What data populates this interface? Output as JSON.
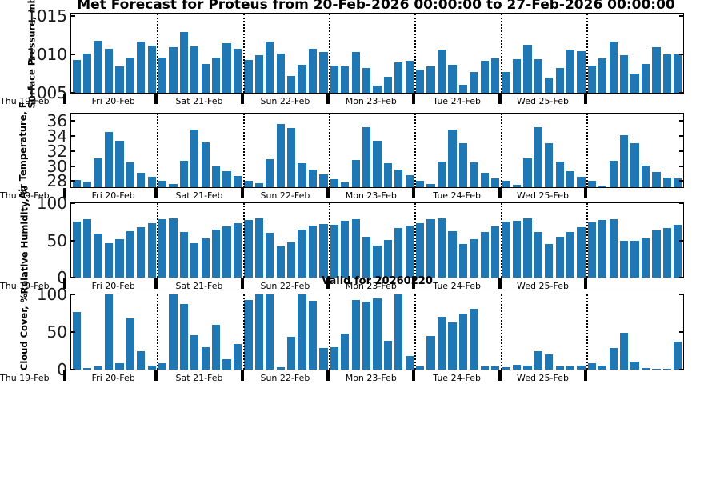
{
  "title": "Met Forecast for Proteus from 20-Feb-2026 00:00:00 to 27-Feb-2026 00:00:00",
  "annotation": "Valid for 20260220",
  "colors": {
    "bar": "#1f77b4",
    "axis": "#000000"
  },
  "x_axis": {
    "left_label": "Thu 19-Feb",
    "day_labels": [
      "Fri 20-Feb",
      "Sat 21-Feb",
      "Sun 22-Feb",
      "Mon 23-Feb",
      "Tue 24-Feb",
      "Wed 25-Feb"
    ],
    "points_per_day": 8,
    "step_hours": 3
  },
  "chart_data": [
    {
      "type": "bar",
      "ylabel": "Surface Pressure, mb",
      "yticks": [
        1005,
        1010,
        1015
      ],
      "ylim": [
        1005,
        1015.35
      ],
      "values": [
        1009.3,
        1010.1,
        1011.8,
        1010.8,
        1008.5,
        1009.6,
        1011.7,
        1011.2,
        1009.6,
        1011.0,
        1012.9,
        1011.1,
        1008.8,
        1009.6,
        1011.5,
        1010.8,
        1009.3,
        1009.9,
        1011.7,
        1010.1,
        1007.2,
        1008.7,
        1010.7,
        1010.3,
        1008.6,
        1008.4,
        1010.3,
        1008.2,
        1005.9,
        1007.1,
        1009.0,
        1009.2,
        1008.0,
        1008.4,
        1010.6,
        1008.7,
        1006.0,
        1007.7,
        1009.2,
        1009.5,
        1007.7,
        1009.4,
        1011.3,
        1009.4,
        1007.0,
        1008.2,
        1010.6,
        1010.4,
        1008.6,
        1009.5,
        1011.7,
        1009.9,
        1007.5,
        1008.8,
        1011.0,
        1010.0,
        1010.0
      ]
    },
    {
      "type": "bar",
      "ylabel": "Air Temperature, F",
      "yticks": [
        28,
        30,
        32,
        34,
        36
      ],
      "ylim": [
        27.2,
        36.95
      ],
      "values": [
        28.2,
        27.9,
        31.0,
        34.5,
        33.3,
        30.5,
        29.1,
        28.6,
        28.0,
        27.6,
        30.7,
        34.8,
        33.1,
        30.0,
        29.3,
        28.7,
        28.1,
        27.7,
        30.9,
        35.6,
        35.0,
        30.4,
        29.5,
        28.9,
        28.3,
        27.8,
        30.8,
        35.1,
        33.3,
        30.4,
        29.5,
        28.8,
        28.1,
        27.6,
        30.6,
        34.8,
        33.0,
        30.5,
        29.1,
        28.4,
        28.0,
        27.5,
        31.0,
        35.1,
        33.0,
        30.6,
        29.3,
        28.6,
        28.0,
        27.4,
        30.7,
        34.1,
        33.0,
        30.1,
        29.2,
        28.5,
        28.4
      ]
    },
    {
      "type": "bar",
      "ylabel": "Relative Humidity, %",
      "yticks": [
        0,
        50,
        100
      ],
      "ylim": [
        0,
        100
      ],
      "values": [
        75,
        78,
        59,
        46,
        52,
        62,
        68,
        73,
        78,
        80,
        61,
        46,
        53,
        65,
        69,
        73,
        77,
        80,
        60,
        42,
        47,
        65,
        70,
        72,
        71,
        76,
        79,
        55,
        43,
        51,
        67,
        70,
        73,
        78,
        80,
        62,
        45,
        52,
        61,
        69,
        75,
        76,
        80,
        61,
        45,
        55,
        61,
        68,
        74,
        77,
        79,
        49,
        49,
        53,
        63,
        67,
        71
      ]
    },
    {
      "type": "bar",
      "ylabel": "Cloud Cover, %",
      "yticks": [
        0,
        50,
        100
      ],
      "ylim": [
        0,
        100
      ],
      "values": [
        77,
        2,
        4,
        100,
        9,
        68,
        25,
        5,
        9,
        100,
        87,
        46,
        30,
        60,
        14,
        34,
        93,
        100,
        100,
        3,
        44,
        100,
        91,
        29,
        30,
        48,
        93,
        90,
        95,
        38,
        100,
        18,
        4,
        45,
        70,
        63,
        74,
        81,
        4,
        4,
        3,
        6,
        5,
        24,
        20,
        4,
        4,
        5,
        9,
        5,
        29,
        49,
        11,
        2,
        1,
        1,
        37
      ]
    }
  ]
}
